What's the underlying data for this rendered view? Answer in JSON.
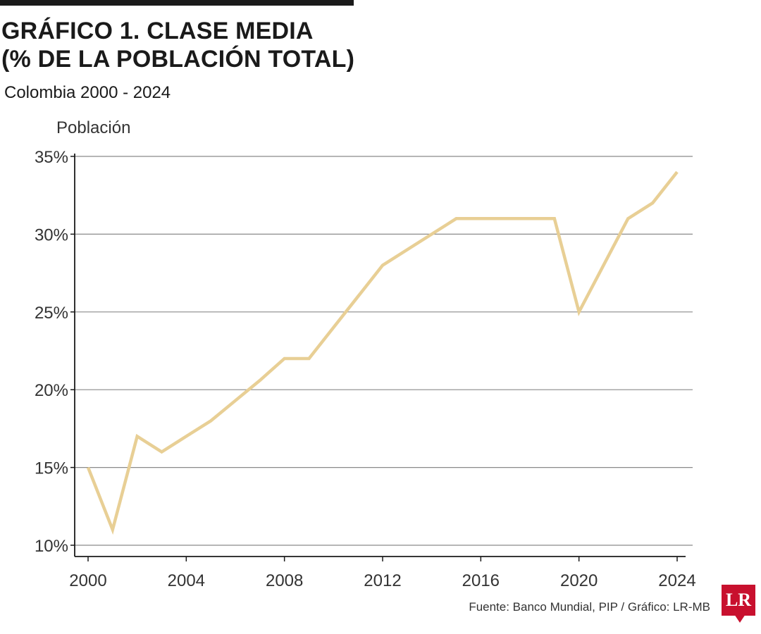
{
  "header": {
    "title_line1": "GRÁFICO 1. CLASE MEDIA",
    "title_line2": "(% DE LA POBLACIÓN TOTAL)",
    "subtitle": "Colombia 2000 - 2024"
  },
  "footer": {
    "source": "Fuente: Banco Mundial, PIP / Gráfico: LR-MB",
    "logo_text": "LR"
  },
  "colors": {
    "line": "#e8cf95",
    "grid": "#8a8a8a",
    "axis": "#1a1a1a",
    "logo": "#c8102e"
  },
  "chart_data": {
    "type": "line",
    "ylabel": "Población",
    "xlabel": "",
    "x": [
      2000,
      2001,
      2002,
      2003,
      2004,
      2005,
      2006,
      2007,
      2008,
      2009,
      2010,
      2011,
      2012,
      2013,
      2014,
      2015,
      2016,
      2017,
      2018,
      2019,
      2020,
      2021,
      2022,
      2023,
      2024
    ],
    "series": [
      {
        "values": [
          15,
          11,
          17,
          16,
          17,
          18,
          19.3,
          20.6,
          22,
          22,
          24,
          26,
          28,
          29,
          30,
          31,
          31,
          31,
          31,
          31,
          25,
          28,
          31,
          32,
          34
        ]
      }
    ],
    "ylim": [
      10,
      35
    ],
    "yticks": [
      10,
      15,
      20,
      25,
      30,
      35
    ],
    "ytick_labels": [
      "10%",
      "15%",
      "20%",
      "25%",
      "30%",
      "35%"
    ],
    "xticks": [
      2000,
      2004,
      2008,
      2012,
      2016,
      2020,
      2024
    ],
    "xtick_labels": [
      "2000",
      "2004",
      "2008",
      "2012",
      "2016",
      "2020",
      "2024"
    ],
    "grid": true
  }
}
